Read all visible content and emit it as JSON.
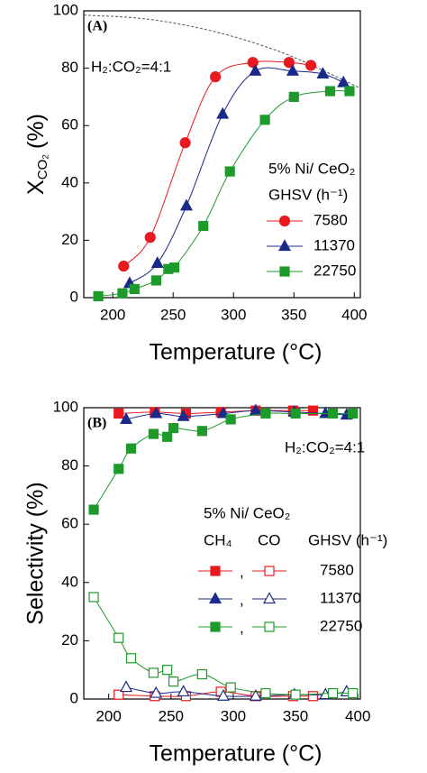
{
  "chart_data": [
    {
      "type": "line",
      "panel_label": "(A)",
      "annotation": "H₂:CO₂=4:1",
      "x_label": "Temperature (°C)",
      "y_label": {
        "main": "X",
        "sub": "CO₂",
        "unit": "(%)"
      },
      "xlim": [
        176,
        405
      ],
      "xticks": [
        200,
        250,
        300,
        350,
        400
      ],
      "ylim": [
        0,
        100
      ],
      "yticks": [
        0,
        20,
        40,
        60,
        80,
        100
      ],
      "legend_title": "5% Ni/ CeO₂",
      "legend_subtitle": "GHSV (h⁻¹)",
      "reference_curve": {
        "x": [
          176,
          220,
          260,
          300,
          340,
          370,
          405
        ],
        "values": [
          98.5,
          97.5,
          95,
          91,
          85.5,
          80,
          73
        ],
        "color": "#555555",
        "dashed": true
      },
      "series": [
        {
          "name": "7580",
          "color": "#e8191f",
          "marker": "circle",
          "x": [
            209,
            231,
            260,
            285,
            316,
            346,
            364
          ],
          "values": [
            11,
            21,
            54,
            77,
            82,
            82,
            81
          ]
        },
        {
          "name": "11370",
          "color": "#1a2a8a",
          "marker": "triangle",
          "x": [
            214,
            237,
            261,
            291,
            318,
            349,
            374,
            391
          ],
          "values": [
            5,
            12,
            32,
            64,
            79,
            79,
            78,
            75
          ]
        },
        {
          "name": "22750",
          "color": "#1e9a2a",
          "marker": "square",
          "x": [
            188,
            208,
            218,
            236,
            246,
            251,
            275,
            297,
            326,
            350,
            380,
            396
          ],
          "values": [
            0.5,
            1.5,
            3,
            6,
            10,
            10.5,
            25,
            44,
            62,
            70,
            72,
            72
          ]
        }
      ]
    },
    {
      "type": "line",
      "panel_label": "(B)",
      "annotation": "H₂:CO₂=4:1",
      "x_label": "Temperature (°C)",
      "y_label": "Selectivity (%)",
      "xlim": [
        180,
        402
      ],
      "xticks": [
        200,
        250,
        300,
        350,
        400
      ],
      "ylim": [
        0,
        100
      ],
      "yticks": [
        0,
        20,
        40,
        60,
        80,
        100
      ],
      "legend_title": "5% Ni/ CeO₂",
      "legend_columns": [
        "CH₄",
        "CO",
        "GHSV (h⁻¹)"
      ],
      "legend_separator": ",",
      "series": [
        {
          "name": "7580",
          "color": "#e8191f",
          "marker": "square",
          "ch4": {
            "x": [
              208,
              237,
              262,
              290,
              318,
              348,
              364
            ],
            "values": [
              98,
              98.5,
              98,
              98.5,
              99,
              99,
              99
            ]
          },
          "co": {
            "x": [
              208,
              237,
              262,
              290,
              318,
              348,
              364
            ],
            "values": [
              1.5,
              1,
              1,
              2.5,
              1,
              1,
              1
            ]
          }
        },
        {
          "name": "11370",
          "color": "#1a2a8a",
          "marker": "triangle",
          "ch4": {
            "x": [
              214,
              238,
              260,
              292,
              318,
              349,
              374,
              391
            ],
            "values": [
              96,
              98,
              97,
              98,
              99,
              98.5,
              98,
              97.5
            ]
          },
          "co": {
            "x": [
              214,
              238,
              260,
              292,
              318,
              349,
              374,
              391
            ],
            "values": [
              4,
              2,
              2.5,
              1,
              1,
              1.5,
              1.5,
              2.5
            ]
          }
        },
        {
          "name": "22750",
          "color": "#1e9a2a",
          "marker": "square",
          "ch4": {
            "x": [
              188,
              208,
              218,
              236,
              247,
              252,
              275,
              298,
              326,
              350,
              380,
              396
            ],
            "values": [
              65,
              79,
              86,
              91,
              90,
              93,
              92,
              96,
              98,
              98,
              98,
              98
            ]
          },
          "co": {
            "x": [
              188,
              208,
              218,
              236,
              247,
              252,
              275,
              298,
              326,
              350,
              380,
              396
            ],
            "values": [
              35,
              21,
              14,
              9,
              10,
              6,
              8.5,
              4,
              2,
              1.5,
              2,
              2
            ]
          }
        }
      ]
    }
  ]
}
